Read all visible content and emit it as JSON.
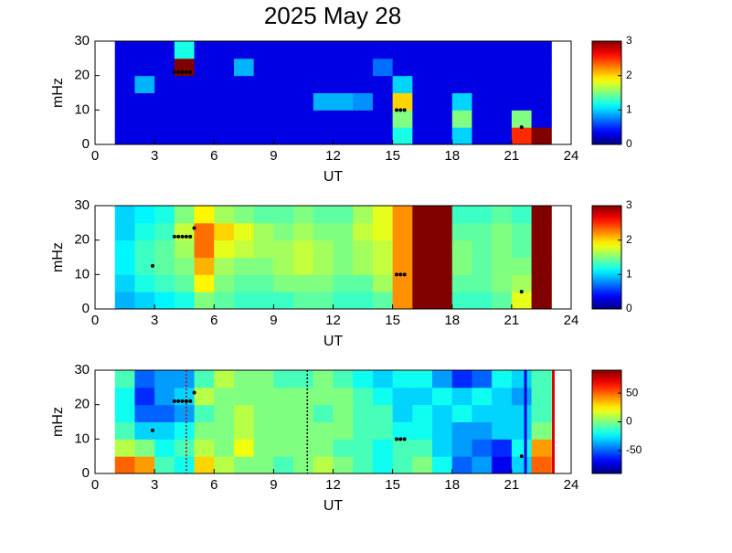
{
  "title": "2025 May 28",
  "chart_data": [
    {
      "type": "heatmap",
      "xlabel": "UT",
      "ylabel": "mHz",
      "xlim": [
        0,
        24
      ],
      "xticks": [
        0,
        3,
        6,
        9,
        12,
        15,
        18,
        21,
        24
      ],
      "ylim": [
        0,
        30
      ],
      "yticks": [
        0,
        10,
        20,
        30
      ],
      "clim": [
        0,
        3
      ],
      "cticks": [
        0,
        1,
        2,
        3
      ],
      "x": [
        1,
        2,
        3,
        4,
        5,
        6,
        7,
        8,
        9,
        10,
        11,
        12,
        13,
        14,
        15,
        16,
        17,
        18,
        19,
        20,
        21,
        22,
        23
      ],
      "y": [
        0,
        5,
        10,
        15,
        20,
        25,
        30
      ],
      "z": [
        [
          0.3,
          0.3,
          0.3,
          0.3,
          0.3,
          0.3,
          0.3,
          0.3,
          0.3,
          0.3,
          0.3,
          0.3,
          0.3,
          0.3,
          1.2,
          0.3,
          0.3,
          1,
          0.3,
          0.3,
          2.5,
          3
        ],
        [
          0.3,
          0.3,
          0.3,
          0.3,
          0.3,
          0.3,
          0.3,
          0.3,
          0.3,
          0.3,
          0.3,
          0.3,
          0.3,
          0.3,
          1.5,
          0.3,
          0.3,
          1.5,
          0.3,
          0.3,
          1.5,
          0.3
        ],
        [
          0.3,
          0.3,
          0.3,
          0.3,
          0.3,
          0.3,
          0.3,
          0.3,
          0.3,
          0.3,
          0.9,
          0.9,
          0.8,
          0.3,
          2,
          0.3,
          0.3,
          1,
          0.3,
          0.3,
          0.3,
          0.3
        ],
        [
          0.3,
          0.9,
          0.3,
          0.3,
          0.3,
          0.3,
          0.3,
          0.3,
          0.3,
          0.3,
          0.3,
          0.3,
          0.3,
          0.3,
          1,
          0.3,
          0.3,
          0.3,
          0.3,
          0.3,
          0.3,
          0.3
        ],
        [
          0.3,
          0.3,
          0.3,
          3,
          0.3,
          0.3,
          0.9,
          0.3,
          0.3,
          0.3,
          0.3,
          0.3,
          0.3,
          0.7,
          0.3,
          0.3,
          0.3,
          0.3,
          0.3,
          0.3,
          0.3,
          0.3
        ],
        [
          0.3,
          0.3,
          0.3,
          1.2,
          0.3,
          0.3,
          0.3,
          0.3,
          0.3,
          0.3,
          0.3,
          0.3,
          0.3,
          0.3,
          0.3,
          0.3,
          0.3,
          0.3,
          0.3,
          0.3,
          0.3,
          0.3
        ]
      ],
      "markers": {
        "x": [
          4.0,
          4.2,
          4.4,
          4.6,
          4.8,
          15.2,
          15.4,
          15.6,
          21.5
        ],
        "y": [
          21,
          21,
          21,
          21,
          21,
          10,
          10,
          10,
          5
        ]
      }
    },
    {
      "type": "heatmap",
      "xlabel": "UT",
      "ylabel": "mHz",
      "xlim": [
        0,
        24
      ],
      "xticks": [
        0,
        3,
        6,
        9,
        12,
        15,
        18,
        21,
        24
      ],
      "ylim": [
        0,
        30
      ],
      "yticks": [
        0,
        10,
        20,
        30
      ],
      "clim": [
        0,
        3
      ],
      "cticks": [
        0,
        1,
        2,
        3
      ],
      "x": [
        1,
        2,
        3,
        4,
        5,
        6,
        7,
        8,
        9,
        10,
        11,
        12,
        13,
        14,
        15,
        16,
        17,
        18,
        19,
        20,
        21,
        22,
        23
      ],
      "y": [
        0,
        5,
        10,
        15,
        20,
        25,
        30
      ],
      "z": [
        [
          0.9,
          1.0,
          1.1,
          1.2,
          1.5,
          1.4,
          1.3,
          1.3,
          1.3,
          1.4,
          1.4,
          1.3,
          1.3,
          1.4,
          2.2,
          3,
          3,
          1.3,
          1.3,
          1.4,
          1.8,
          3
        ],
        [
          1.0,
          1.2,
          1.3,
          1.4,
          1.9,
          1.5,
          1.4,
          1.4,
          1.5,
          1.5,
          1.5,
          1.4,
          1.4,
          1.6,
          2.2,
          3,
          3,
          1.4,
          1.4,
          1.5,
          1.6,
          3
        ],
        [
          1.1,
          1.3,
          1.4,
          1.5,
          2.1,
          1.6,
          1.5,
          1.5,
          1.6,
          1.7,
          1.6,
          1.5,
          1.6,
          1.7,
          2.2,
          3,
          3,
          1.5,
          1.4,
          1.5,
          1.5,
          3
        ],
        [
          1.1,
          1.3,
          1.4,
          1.6,
          2.3,
          1.8,
          1.7,
          1.6,
          1.6,
          1.7,
          1.6,
          1.5,
          1.6,
          1.7,
          2.2,
          3,
          3,
          1.5,
          1.4,
          1.5,
          1.4,
          3
        ],
        [
          1.0,
          1.2,
          1.3,
          1.7,
          2.3,
          2.0,
          1.8,
          1.6,
          1.5,
          1.6,
          1.5,
          1.5,
          1.7,
          1.8,
          2.2,
          3,
          3,
          1.4,
          1.4,
          1.5,
          1.4,
          3
        ],
        [
          1.0,
          1.1,
          1.2,
          1.5,
          1.9,
          1.6,
          1.5,
          1.4,
          1.4,
          1.5,
          1.4,
          1.4,
          1.6,
          1.8,
          2.2,
          3,
          3,
          1.3,
          1.3,
          1.4,
          1.3,
          3
        ]
      ],
      "markers": {
        "x": [
          2.9,
          4.0,
          4.2,
          4.4,
          4.6,
          4.8,
          5.0,
          15.2,
          15.4,
          15.6,
          21.5
        ],
        "y": [
          12.5,
          21,
          21,
          21,
          21,
          21,
          23.5,
          10,
          10,
          10,
          5
        ]
      }
    },
    {
      "type": "heatmap",
      "xlabel": "UT",
      "ylabel": "mHz",
      "xlim": [
        0,
        24
      ],
      "xticks": [
        0,
        3,
        6,
        9,
        12,
        15,
        18,
        21,
        24
      ],
      "ylim": [
        0,
        30
      ],
      "yticks": [
        0,
        10,
        20,
        30
      ],
      "clim": [
        -90,
        90
      ],
      "cticks": [
        -50,
        0,
        50
      ],
      "x": [
        1,
        2,
        3,
        4,
        5,
        6,
        7,
        8,
        9,
        10,
        11,
        12,
        13,
        14,
        15,
        16,
        17,
        18,
        19,
        20,
        21,
        22,
        23
      ],
      "y": [
        0,
        5,
        10,
        15,
        20,
        25,
        30
      ],
      "z": [
        [
          50,
          40,
          -10,
          -20,
          30,
          10,
          0,
          0,
          -10,
          0,
          10,
          0,
          -10,
          -20,
          -10,
          0,
          -20,
          -50,
          -40,
          -70,
          -30,
          50
        ],
        [
          10,
          0,
          -20,
          -10,
          10,
          0,
          20,
          0,
          0,
          0,
          0,
          -10,
          -10,
          -20,
          -10,
          -10,
          -30,
          -40,
          -50,
          -60,
          -20,
          40
        ],
        [
          -10,
          -30,
          -30,
          -20,
          0,
          0,
          10,
          0,
          0,
          0,
          0,
          0,
          -10,
          -10,
          -20,
          -20,
          -30,
          -40,
          -40,
          -30,
          -30,
          0
        ],
        [
          -20,
          -50,
          -50,
          -40,
          -10,
          0,
          10,
          0,
          0,
          0,
          -10,
          0,
          -10,
          -10,
          -30,
          -20,
          -30,
          -20,
          -30,
          -30,
          -30,
          -10
        ],
        [
          -20,
          -60,
          -40,
          -30,
          10,
          0,
          0,
          0,
          0,
          0,
          0,
          0,
          -10,
          -20,
          -30,
          -30,
          -20,
          -30,
          -20,
          -30,
          -40,
          -10
        ],
        [
          -10,
          -50,
          -40,
          -40,
          -10,
          10,
          0,
          0,
          -10,
          -10,
          0,
          -10,
          -20,
          -30,
          -20,
          -20,
          -40,
          -60,
          -50,
          -20,
          -30,
          -10
        ]
      ],
      "markers": {
        "x": [
          2.9,
          4.0,
          4.2,
          4.4,
          4.6,
          4.8,
          5.0,
          15.2,
          15.4,
          15.6,
          21.5
        ],
        "y": [
          12.5,
          21,
          21,
          21,
          21,
          21,
          23.5,
          10,
          10,
          10,
          5
        ]
      },
      "vlines": [
        {
          "x": 4.6,
          "color": "#d00000",
          "style": "dotted"
        },
        {
          "x": 10.7,
          "color": "#000000",
          "style": "dotted"
        },
        {
          "x": 21.7,
          "color": "#0000dd",
          "style": "solid"
        },
        {
          "x": 23.1,
          "color": "#dd0000",
          "style": "solid"
        }
      ]
    }
  ]
}
